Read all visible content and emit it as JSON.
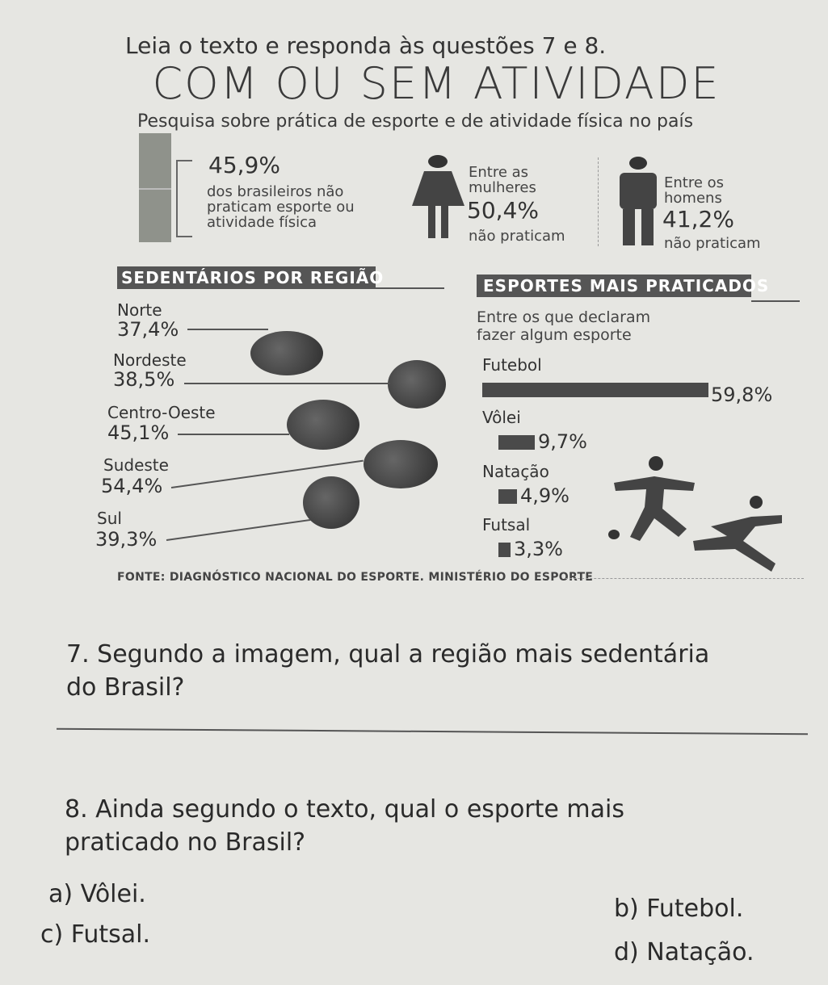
{
  "intro": "Leia o texto e responda às questões 7 e 8.",
  "title": "COM OU SEM ATIVIDADE",
  "subtitle": "Pesquisa sobre prática de esporte e de atividade física no país",
  "stats": {
    "total": {
      "value": "45,9%",
      "text": [
        "dos brasileiros não",
        "praticam esporte ou",
        "atividade física"
      ]
    },
    "women": {
      "pre": [
        "Entre as",
        "mulheres"
      ],
      "value": "50,4%",
      "post": "não praticam"
    },
    "men": {
      "pre": [
        "Entre os",
        "homens"
      ],
      "value": "41,2%",
      "post": "não praticam"
    }
  },
  "regions_heading": "SEDENTÁRIOS POR REGIÃO",
  "regions": [
    {
      "name": "Norte",
      "value": "37,4%"
    },
    {
      "name": "Nordeste",
      "value": "38,5%"
    },
    {
      "name": "Centro-Oeste",
      "value": "45,1%"
    },
    {
      "name": "Sudeste",
      "value": "54,4%"
    },
    {
      "name": "Sul",
      "value": "39,3%"
    }
  ],
  "sports_heading": "ESPORTES MAIS PRATICADOS",
  "sports_note": [
    "Entre os que declaram",
    "fazer algum esporte"
  ],
  "chart_data": {
    "type": "bar",
    "categories": [
      "Futebol",
      "Vôlei",
      "Natação",
      "Futsal"
    ],
    "values": [
      59.8,
      9.7,
      4.9,
      3.3
    ],
    "labels": [
      "59,8%",
      "9,7%",
      "4,9%",
      "3,3%"
    ]
  },
  "source": "FONTE: DIAGNÓSTICO NACIONAL DO ESPORTE. MINISTÉRIO DO ESPORTE",
  "q7": [
    "7. Segundo a imagem, qual a região mais sedentária",
    "do Brasil?"
  ],
  "q8": [
    "8. Ainda segundo o texto, qual o esporte mais",
    "praticado no Brasil?"
  ],
  "options": {
    "a": "a) Vôlei.",
    "b": "b) Futebol.",
    "c": "c) Futsal.",
    "d": "d) Natação."
  }
}
